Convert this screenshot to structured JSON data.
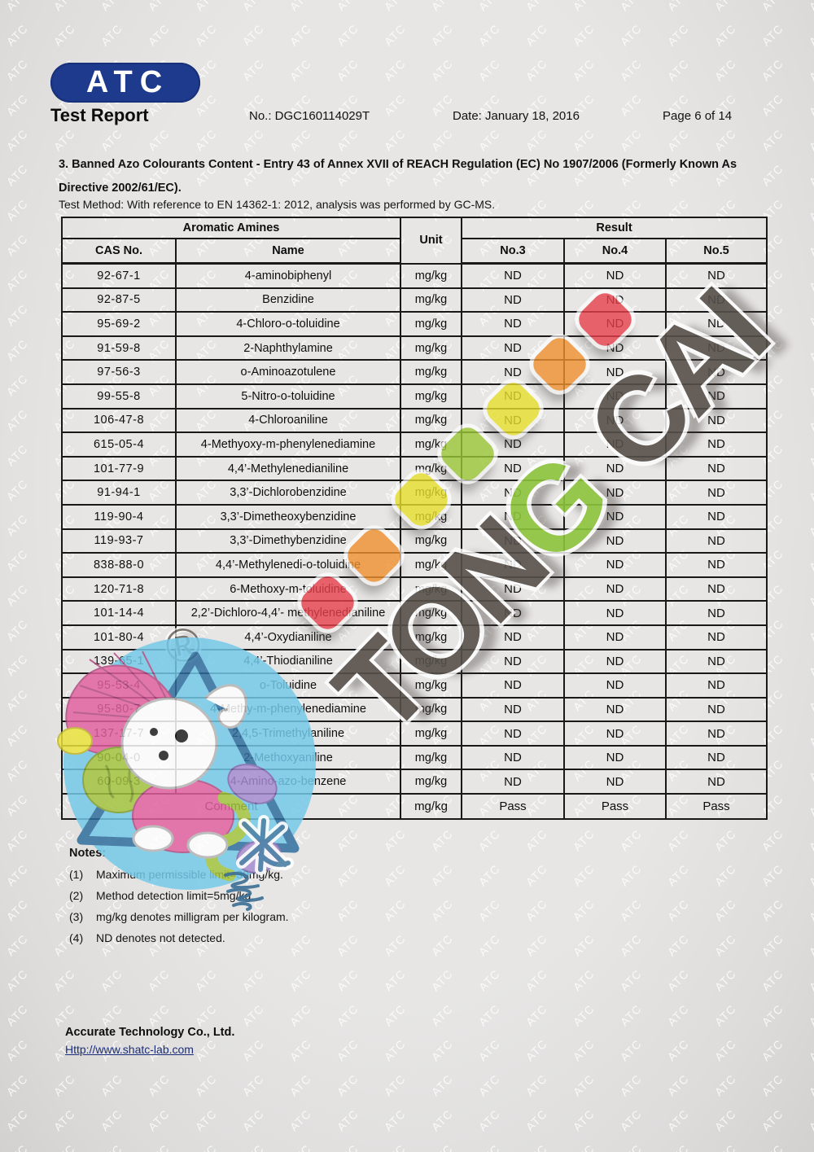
{
  "header": {
    "logo_text": "ATC",
    "logo_color": "#1e3a8c",
    "title": "Test Report",
    "report_no": "No.: DGC160114029T",
    "date": "Date: January 18, 2016",
    "page": "Page 6 of 14"
  },
  "section": {
    "heading": "3. Banned Azo Colourants Content - Entry 43 of Annex XVII of REACH Regulation (EC) No 1907/2006 (Formerly Known As Directive 2002/61/EC).",
    "test_method": "Test Method: With reference to EN 14362-1: 2012, analysis was performed by GC-MS."
  },
  "table": {
    "group_headers": {
      "aromatic_amines": "Aromatic Amines",
      "unit": "Unit",
      "result": "Result"
    },
    "col_headers": {
      "cas": "CAS No.",
      "name": "Name",
      "no3": "No.3",
      "no4": "No.4",
      "no5": "No.5"
    },
    "rows": [
      {
        "cas": "92-67-1",
        "name": "4-aminobiphenyl",
        "unit": "mg/kg",
        "no3": "ND",
        "no4": "ND",
        "no5": "ND"
      },
      {
        "cas": "92-87-5",
        "name": "Benzidine",
        "unit": "mg/kg",
        "no3": "ND",
        "no4": "ND",
        "no5": "ND"
      },
      {
        "cas": "95-69-2",
        "name": "4-Chloro-o-toluidine",
        "unit": "mg/kg",
        "no3": "ND",
        "no4": "ND",
        "no5": "ND"
      },
      {
        "cas": "91-59-8",
        "name": "2-Naphthylamine",
        "unit": "mg/kg",
        "no3": "ND",
        "no4": "ND",
        "no5": "ND"
      },
      {
        "cas": "97-56-3",
        "name": "o-Aminoazotulene",
        "unit": "mg/kg",
        "no3": "ND",
        "no4": "ND",
        "no5": "ND"
      },
      {
        "cas": "99-55-8",
        "name": "5-Nitro-o-toluidine",
        "unit": "mg/kg",
        "no3": "ND",
        "no4": "ND",
        "no5": "ND"
      },
      {
        "cas": "106-47-8",
        "name": "4-Chloroaniline",
        "unit": "mg/kg",
        "no3": "ND",
        "no4": "ND",
        "no5": "ND"
      },
      {
        "cas": "615-05-4",
        "name": "4-Methyoxy-m-phenylenediamine",
        "unit": "mg/kg",
        "no3": "ND",
        "no4": "ND",
        "no5": "ND"
      },
      {
        "cas": "101-77-9",
        "name": "4,4’-Methylenedianiline",
        "unit": "mg/kg",
        "no3": "ND",
        "no4": "ND",
        "no5": "ND"
      },
      {
        "cas": "91-94-1",
        "name": "3,3’-Dichlorobenzidine",
        "unit": "mg/kg",
        "no3": "ND",
        "no4": "ND",
        "no5": "ND"
      },
      {
        "cas": "119-90-4",
        "name": "3,3’-Dimetheoxybenzidine",
        "unit": "mg/kg",
        "no3": "ND",
        "no4": "ND",
        "no5": "ND"
      },
      {
        "cas": "119-93-7",
        "name": "3,3’-Dimethybenzidine",
        "unit": "mg/kg",
        "no3": "ND",
        "no4": "ND",
        "no5": "ND"
      },
      {
        "cas": "838-88-0",
        "name": "4,4’-Methylenedi-o-toluidine",
        "unit": "mg/kg",
        "no3": "ND",
        "no4": "ND",
        "no5": "ND"
      },
      {
        "cas": "120-71-8",
        "name": "6-Methoxy-m-toluidine",
        "unit": "mg/kg",
        "no3": "ND",
        "no4": "ND",
        "no5": "ND"
      },
      {
        "cas": "101-14-4",
        "name": "2,2’-Dichloro-4,4’- methylenedianiline",
        "unit": "mg/kg",
        "no3": "ND",
        "no4": "ND",
        "no5": "ND"
      },
      {
        "cas": "101-80-4",
        "name": "4,4’-Oxydianiline",
        "unit": "mg/kg",
        "no3": "ND",
        "no4": "ND",
        "no5": "ND"
      },
      {
        "cas": "139-65-1",
        "name": "4,4’-Thiodianiline",
        "unit": "mg/kg",
        "no3": "ND",
        "no4": "ND",
        "no5": "ND"
      },
      {
        "cas": "95-53-4",
        "name": "o-Toluidine",
        "unit": "mg/kg",
        "no3": "ND",
        "no4": "ND",
        "no5": "ND"
      },
      {
        "cas": "95-80-7",
        "name": "4-Methy-m-phenylenediamine",
        "unit": "mg/kg",
        "no3": "ND",
        "no4": "ND",
        "no5": "ND"
      },
      {
        "cas": "137-17-7",
        "name": "2,4,5-Trimethylaniline",
        "unit": "mg/kg",
        "no3": "ND",
        "no4": "ND",
        "no5": "ND"
      },
      {
        "cas": "90-04-0",
        "name": "2-Methoxyaniline",
        "unit": "mg/kg",
        "no3": "ND",
        "no4": "ND",
        "no5": "ND"
      },
      {
        "cas": "60-09-3",
        "name": "4-Amino-azo-benzene",
        "unit": "mg/kg",
        "no3": "ND",
        "no4": "ND",
        "no5": "ND"
      }
    ],
    "comment_row": {
      "label": "Comment",
      "unit": "mg/kg",
      "no3": "Pass",
      "no4": "Pass",
      "no5": "Pass"
    }
  },
  "notes": {
    "label": "Notes:",
    "items": [
      {
        "num": "(1)",
        "text": "Maximum permissible limit=30mg/kg."
      },
      {
        "num": "(2)",
        "text": "Method detection limit=5mg/kg."
      },
      {
        "num": "(3)",
        "text": "mg/kg denotes milligram per kilogram."
      },
      {
        "num": "(4)",
        "text": "ND denotes not detected."
      }
    ]
  },
  "footer": {
    "company": "Accurate Technology Co., Ltd.",
    "website": "Http://www.shatc-lab.com"
  },
  "watermark": {
    "tile_label": "ATC",
    "brand_text": "TONG CAI",
    "green_char_index": 3,
    "registered_symbol": "®",
    "brand_color": "#57504a",
    "brand_green": "#8dc43c",
    "dot_colors": [
      "#e6404b",
      "#f0912f",
      "#e8df2b",
      "#9cc838",
      "#e8df2b",
      "#f0912f",
      "#e6404b"
    ]
  }
}
